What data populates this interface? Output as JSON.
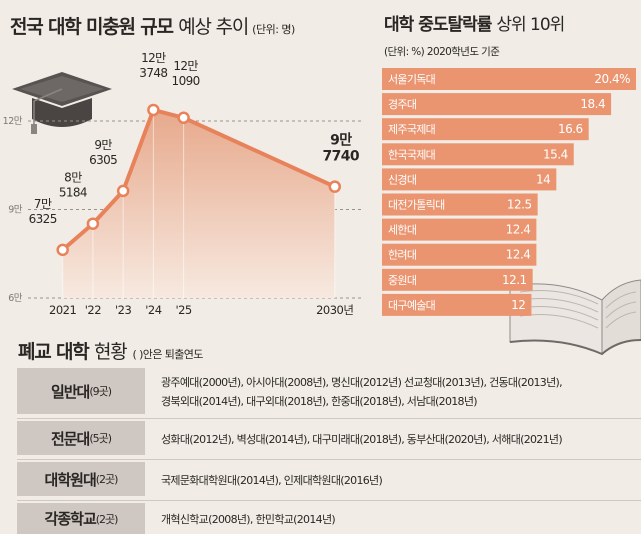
{
  "left_chart": {
    "title_bold": "전국 대학 미충원 규모",
    "title_normal": "예상 추이",
    "unit": "(단위: 명)"
  },
  "right_chart": {
    "title_bold": "대학 중도탈락률",
    "title_normal": "상위 10위",
    "subtitle": "(단위: %) 2020학년도 기준"
  },
  "closed_table": {
    "title_bold": "폐교 대학",
    "title_normal": "현황",
    "note": "( )안은 퇴출연도",
    "rows": [
      {
        "category": "일반대",
        "count": "(9곳)",
        "lines": [
          "광주예대(2000년), 아시아대(2008년), 명신대(2012년) 선교청대(2013년), 건동대(2013년),",
          "경북외대(2014년), 대구외대(2018년), 한중대(2018년), 서남대(2018년)"
        ]
      },
      {
        "category": "전문대",
        "count": "(5곳)",
        "lines": [
          "성화대(2012년), 벽성대(2014년), 대구미래대(2018년), 동부산대(2020년), 서해대(2021년)"
        ]
      },
      {
        "category": "대학원대",
        "count": "(2곳)",
        "lines": [
          "국제문화대학원대(2014년), 인제대학원대(2016년)"
        ]
      },
      {
        "category": "각종학교",
        "count": "(2곳)",
        "lines": [
          "개혁신학교(2008년), 한민학교(2014년)"
        ]
      }
    ]
  },
  "colors": {
    "line": "#e8825a",
    "bar": "#ea9470",
    "area_top": "#e7a98c",
    "area_bottom": "#f7e9e0",
    "grid": "#9a938d"
  },
  "chart_data": [
    {
      "type": "line",
      "title": "전국 대학 미충원 규모 예상 추이 (단위: 명)",
      "x": [
        "2021",
        "'22",
        "'23",
        "'24",
        "'25",
        "2030년"
      ],
      "x_values": [
        2021,
        2022,
        2023,
        2024,
        2025,
        2030
      ],
      "y": [
        76325,
        85184,
        96305,
        123748,
        121090,
        97740
      ],
      "data_labels": [
        [
          "7만",
          "6325"
        ],
        [
          "8만",
          "5184"
        ],
        [
          "9만",
          "6305"
        ],
        [
          "12만",
          "3748"
        ],
        [
          "12만",
          "1090"
        ],
        [
          "9만",
          "7740"
        ]
      ],
      "y_ticks": [
        "6만",
        "9만",
        "12만"
      ],
      "y_tick_values": [
        60000,
        90000,
        120000
      ],
      "ylim": [
        60000,
        135000
      ],
      "grid": "dashed horizontal",
      "fill": "area"
    },
    {
      "type": "bar",
      "orientation": "horizontal",
      "title": "대학 중도탈락률 상위 10위",
      "subtitle": "(단위: %) 2020학년도 기준",
      "categories": [
        "서울기독대",
        "경주대",
        "제주국제대",
        "한국국제대",
        "신경대",
        "대전가톨릭대",
        "세한대",
        "한려대",
        "중원대",
        "대구예술대"
      ],
      "values": [
        20.4,
        18.4,
        16.6,
        15.4,
        14,
        12.5,
        12.4,
        12.4,
        12.1,
        12
      ],
      "value_labels": [
        "20.4%",
        "18.4",
        "16.6",
        "15.4",
        "14",
        "12.5",
        "12.4",
        "12.4",
        "12.1",
        "12"
      ],
      "xlim": [
        0,
        20.4
      ]
    }
  ]
}
